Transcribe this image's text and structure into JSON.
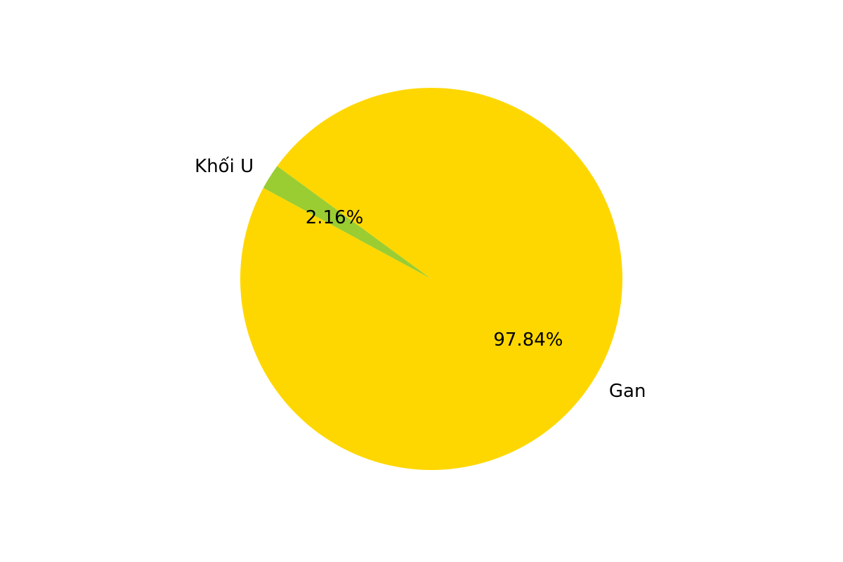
{
  "chart_data": {
    "type": "pie",
    "title": "",
    "slices": [
      {
        "label": "Khối U",
        "value": 2.16,
        "percent_label": "2.16%",
        "color": "#9ACD32"
      },
      {
        "label": "Gan",
        "value": 97.84,
        "percent_label": "97.84%",
        "color": "#FFD700"
      }
    ],
    "start_angle_deg": 143.8,
    "direction": "counterclockwise",
    "legend": "none"
  }
}
